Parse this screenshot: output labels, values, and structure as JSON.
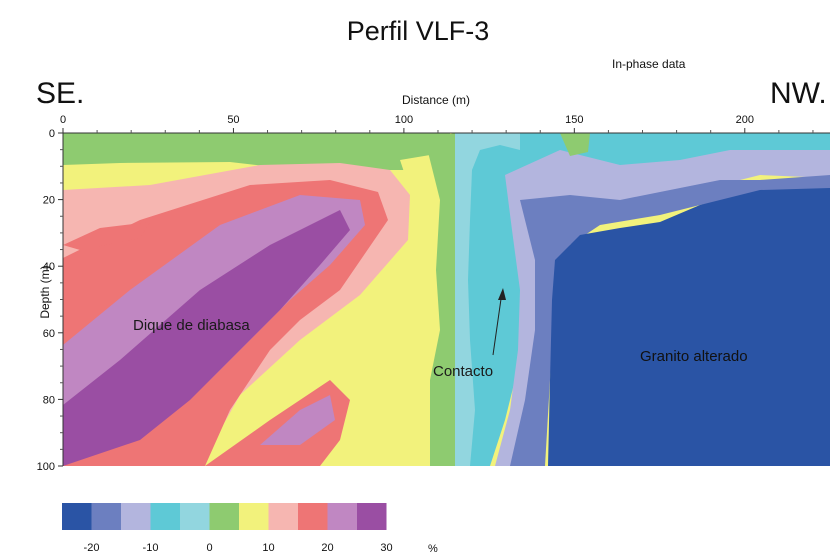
{
  "chart_data": {
    "type": "heatmap",
    "title": "Perfil VLF-3",
    "subtitle": "In-phase data",
    "xlabel": "Distance (m)",
    "ylabel": "Depth (m)",
    "left_end_label": "SE.",
    "right_end_label": "NW.",
    "xlim": [
      0,
      225
    ],
    "ylim": [
      0,
      100
    ],
    "y_inverted": true,
    "x_ticks": [
      "0",
      "50",
      "100",
      "150",
      "200"
    ],
    "y_ticks": [
      "0",
      "20",
      "40",
      "60",
      "80",
      "100"
    ],
    "annotations": [
      "Dique de diabasa",
      "Contacto",
      "Granito alterado"
    ],
    "colorbar": {
      "tick_labels": [
        "-20",
        "-10",
        "0",
        "10",
        "20",
        "30"
      ],
      "unit": "%",
      "colors": [
        "#2a54a5",
        "#6c7fc0",
        "#b3b5de",
        "#5ec9d6",
        "#92d6df",
        "#8ecb70",
        "#f2f27c",
        "#f6b6b1",
        "#ee7575",
        "#c087c2",
        "#9a4ea3"
      ]
    },
    "zones": [
      {
        "label": "Dique de diabasa",
        "approx_x_range": [
          0,
          100
        ],
        "approx_depth_range": [
          20,
          100
        ],
        "value_range_pct": [
          20,
          30
        ]
      },
      {
        "label": "Contacto",
        "approx_x_range": [
          110,
          135
        ],
        "approx_depth_range": [
          0,
          100
        ],
        "value_range_pct": [
          -10,
          5
        ]
      },
      {
        "label": "Granito alterado",
        "approx_x_range": [
          140,
          225
        ],
        "approx_depth_range": [
          20,
          100
        ],
        "value_range_pct": [
          -20,
          -20
        ]
      }
    ]
  }
}
